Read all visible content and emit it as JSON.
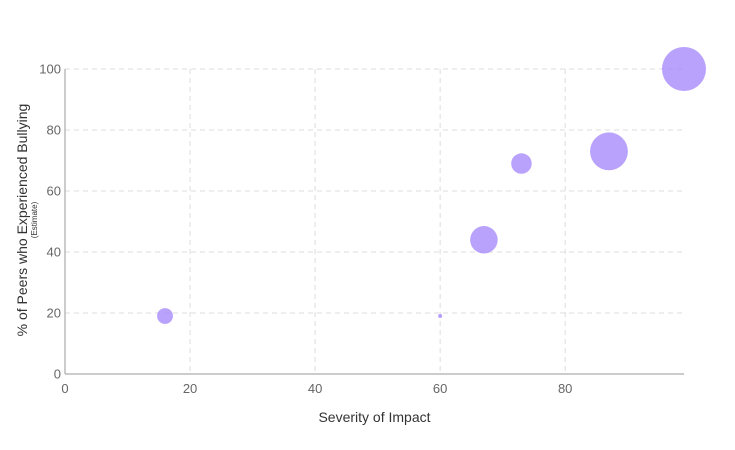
{
  "chart_data": {
    "type": "scatter",
    "variant": "bubble",
    "xlabel": "Severity of Impact",
    "ylabel": "% of Peers who Experienced Bullying",
    "ylabel_sub": "(Estimate)",
    "xlim": [
      0,
      99
    ],
    "ylim": [
      0,
      100
    ],
    "x_ticks": [
      0,
      20,
      40,
      60,
      80
    ],
    "y_ticks": [
      0,
      20,
      40,
      60,
      80,
      100
    ],
    "grid": true,
    "bubble_color": "#a78bfa",
    "series": [
      {
        "points": [
          {
            "x": 16,
            "y": 19,
            "size": 3
          },
          {
            "x": 60,
            "y": 19,
            "size": 0.2
          },
          {
            "x": 67,
            "y": 44,
            "size": 9
          },
          {
            "x": 73,
            "y": 69,
            "size": 5
          },
          {
            "x": 87,
            "y": 73,
            "size": 17
          },
          {
            "x": 99,
            "y": 100,
            "size": 23
          }
        ]
      }
    ]
  }
}
